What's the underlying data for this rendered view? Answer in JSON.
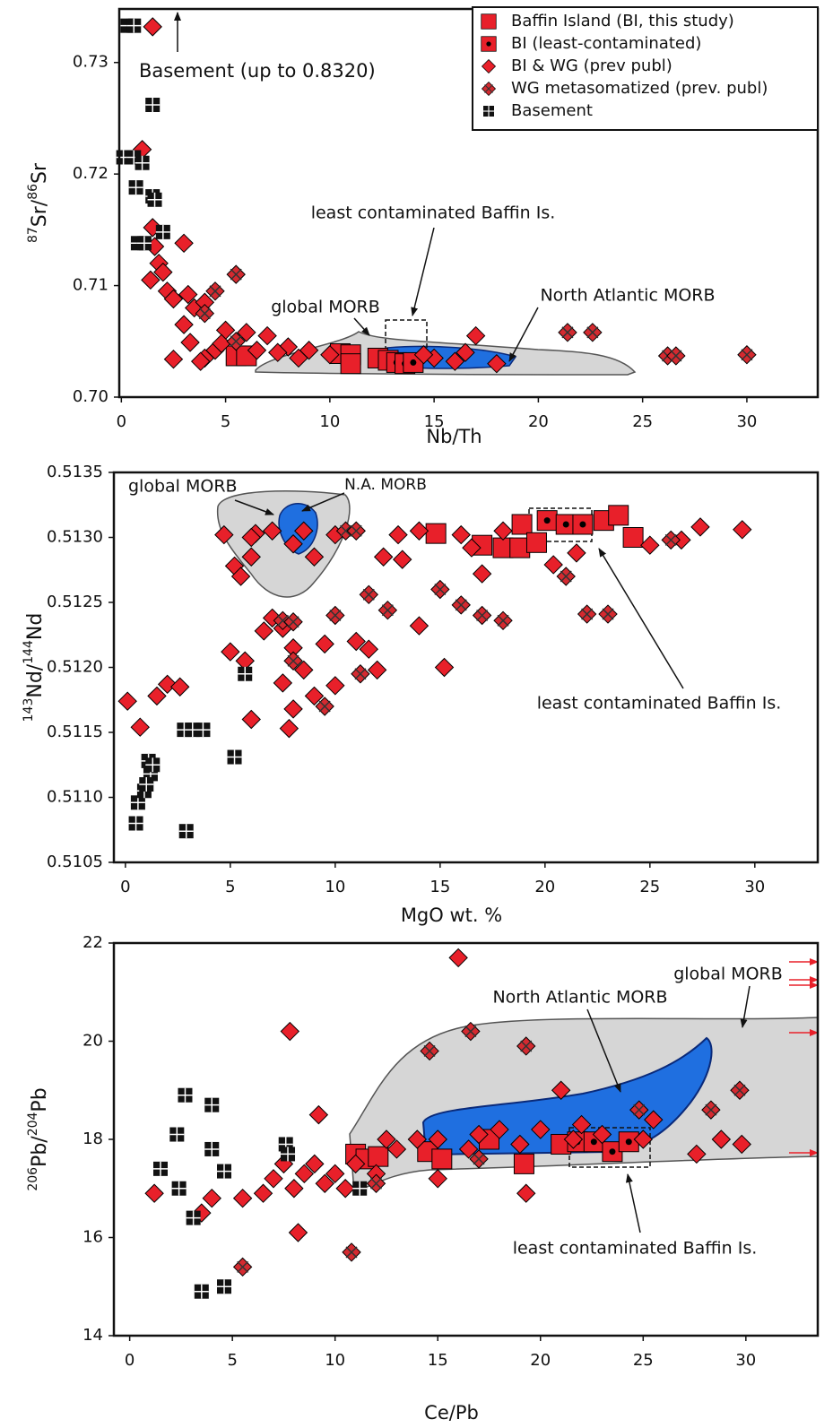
{
  "chart_data": [
    {
      "type": "scatter",
      "xlabel": "Nb/Th",
      "ylabel": [
        "87",
        "Sr/",
        "86",
        "Sr"
      ],
      "xlim": [
        -0.1,
        33.4
      ],
      "ylim": [
        0.7,
        0.7348
      ],
      "xticks": [
        0,
        5,
        10,
        15,
        20,
        25,
        30
      ],
      "yticks": [
        {
          "value": 0.7,
          "label": "0.70"
        },
        0.71,
        0.72,
        0.73
      ],
      "legend": "upper right",
      "annotations": [
        "Basement (up to 0.8320)",
        "least contaminated Baffin Is.",
        "global MORB",
        "North Atlantic MORB"
      ],
      "series": [
        {
          "name": "Baffin Island (BI, this study)",
          "marker": "square",
          "color": "#e8202a",
          "x": [
            5.5,
            6,
            10.5,
            11,
            12.3,
            11,
            12.8
          ],
          "values": [
            0.7037,
            0.7037,
            0.7039,
            0.7038,
            0.7035,
            0.703,
            0.7033
          ]
        },
        {
          "name": "BI (least-contaminated)",
          "marker": "square-dot",
          "color": "#e8202a",
          "x": [
            13.2,
            13.6,
            14
          ],
          "values": [
            0.7031,
            0.703,
            0.7031
          ]
        },
        {
          "name": "BI & WG (prev publ)",
          "marker": "diamond",
          "color": "#e8202a",
          "x": [
            1.5,
            1,
            1.5,
            1.6,
            1.8,
            2,
            1.4,
            2.2,
            2.5,
            3,
            3.2,
            3.5,
            4,
            3,
            3.3,
            2.5,
            4,
            4.5,
            5,
            6,
            7,
            8,
            9,
            10,
            15,
            16,
            17,
            18,
            8.5,
            7.5,
            4.8,
            3.8,
            6.5,
            14.5,
            16.5
          ],
          "values": [
            0.7332,
            0.7222,
            0.7152,
            0.7135,
            0.712,
            0.7112,
            0.7105,
            0.7095,
            0.7088,
            0.7138,
            0.7092,
            0.708,
            0.7085,
            0.7065,
            0.7049,
            0.7034,
            0.7035,
            0.7042,
            0.706,
            0.7058,
            0.7055,
            0.7045,
            0.7042,
            0.7038,
            0.7035,
            0.7032,
            0.7055,
            0.703,
            0.7035,
            0.704,
            0.7048,
            0.7032,
            0.7042,
            0.7038,
            0.704
          ]
        },
        {
          "name": "WG metasomatized (prev. publ)",
          "marker": "diamond-x",
          "color": "#d42a30",
          "x": [
            5.5,
            4.5,
            21.4,
            22.6,
            26.2,
            26.6,
            30,
            4,
            5.5
          ],
          "values": [
            0.711,
            0.7095,
            0.7058,
            0.7058,
            0.7037,
            0.7037,
            0.7038,
            0.7075,
            0.705
          ]
        },
        {
          "name": "Basement",
          "marker": "basement",
          "color": "#111111",
          "x": [
            0.3,
            0.6,
            1.5,
            0.1,
            0.6,
            1,
            0.7,
            1.5,
            1.6,
            2,
            0.8,
            1.1
          ],
          "values": [
            0.7333,
            0.7333,
            0.7262,
            0.7215,
            0.7215,
            0.721,
            0.7188,
            0.718,
            0.7177,
            0.7148,
            0.7138,
            0.7138
          ]
        }
      ]
    },
    {
      "type": "scatter",
      "xlabel": "MgO wt. %",
      "ylabel": [
        "143",
        "Nd/",
        "144",
        "Nd"
      ],
      "xlim": [
        -0.55,
        33
      ],
      "ylim": [
        0.5105,
        0.5135
      ],
      "xticks": [
        0,
        5,
        10,
        15,
        20,
        25,
        30
      ],
      "yticks": [
        0.5105,
        {
          "value": 0.511,
          "label": "0.5110"
        },
        0.5115,
        {
          "value": 0.512,
          "label": "0.5120"
        },
        0.5125,
        {
          "value": 0.513,
          "label": "0.5130"
        },
        0.5135
      ],
      "annotations": [
        "global MORB",
        "N.A. MORB",
        "least contaminated Baffin Is."
      ],
      "series": [
        {
          "marker": "square",
          "color": "#e8202a",
          "x": [
            14.8,
            17,
            18,
            18.9,
            18.8,
            19.6,
            22.8,
            23.5,
            24.2
          ],
          "values": [
            0.51303,
            0.51294,
            0.51292,
            0.5131,
            0.51292,
            0.51296,
            0.51313,
            0.51317,
            0.513
          ]
        },
        {
          "marker": "square-dot",
          "color": "#e8202a",
          "x": [
            20.1,
            21,
            21.8
          ],
          "values": [
            0.51313,
            0.5131,
            0.5131
          ]
        },
        {
          "marker": "diamond",
          "color": "#e8202a",
          "x": [
            0.1,
            0.7,
            1.5,
            2,
            2.6,
            4.7,
            5.2,
            5.5,
            6,
            6.2,
            5,
            5.7,
            6,
            6.6,
            7,
            7.5,
            8,
            7.5,
            8,
            7.8,
            8.5,
            9,
            9.5,
            10,
            11,
            11.6,
            12,
            12.3,
            13.2,
            14,
            15.2,
            16,
            16.5,
            17,
            18,
            20.4,
            21.5,
            25,
            26.5,
            27.4,
            29.4,
            8,
            9,
            10,
            13,
            14,
            6,
            7,
            8.5
          ],
          "values": [
            0.51174,
            0.51154,
            0.51178,
            0.51187,
            0.51185,
            0.51302,
            0.51278,
            0.5127,
            0.51285,
            0.51303,
            0.51212,
            0.51205,
            0.5116,
            0.51228,
            0.51238,
            0.5123,
            0.51215,
            0.51188,
            0.51168,
            0.51153,
            0.51198,
            0.51178,
            0.51218,
            0.51186,
            0.5122,
            0.51214,
            0.51198,
            0.51285,
            0.51283,
            0.51232,
            0.512,
            0.51302,
            0.51292,
            0.51272,
            0.51305,
            0.51279,
            0.51288,
            0.51294,
            0.51298,
            0.51308,
            0.51306,
            0.51295,
            0.51285,
            0.51302,
            0.51302,
            0.51305,
            0.513,
            0.51305,
            0.51305
          ]
        },
        {
          "marker": "diamond-x",
          "color": "#d42a30",
          "x": [
            7.5,
            8,
            10,
            11.6,
            12.5,
            15,
            16,
            17,
            18,
            21,
            22,
            23,
            26,
            10.5,
            11,
            8,
            9.5,
            11.2
          ],
          "values": [
            0.51236,
            0.51235,
            0.5124,
            0.51256,
            0.51244,
            0.5126,
            0.51248,
            0.5124,
            0.51236,
            0.5127,
            0.51241,
            0.51241,
            0.51298,
            0.51305,
            0.51305,
            0.51205,
            0.5117,
            0.51195
          ]
        },
        {
          "marker": "basement",
          "color": "#111111",
          "x": [
            5.7,
            2.8,
            3.2,
            3.7,
            5.2,
            2.9,
            0.5,
            0.6,
            0.9,
            1.1,
            1.2,
            1,
            1.3
          ],
          "values": [
            0.51195,
            0.51152,
            0.51152,
            0.51152,
            0.51131,
            0.51074,
            0.5108,
            0.51096,
            0.51105,
            0.51128,
            0.51118,
            0.5111,
            0.51125
          ]
        }
      ]
    },
    {
      "type": "scatter",
      "xlabel": "Ce/Pb",
      "ylabel": [
        "206",
        "Pb/",
        "204",
        "Pb"
      ],
      "xlim": [
        -0.77,
        33.5
      ],
      "ylim": [
        14,
        22
      ],
      "xticks": [
        0,
        5,
        10,
        15,
        20,
        25,
        30
      ],
      "yticks": [
        14,
        16,
        18,
        20,
        22
      ],
      "annotations": [
        "North Atlantic MORB",
        "global MORB",
        "least contaminated Baffin Is."
      ],
      "series": [
        {
          "marker": "square",
          "color": "#e8202a",
          "x": [
            11,
            11.5,
            12.1,
            14.5,
            15.2,
            17.5,
            19.2,
            21
          ],
          "values": [
            17.7,
            17.6,
            17.65,
            17.75,
            17.6,
            18,
            17.5,
            17.9
          ]
        },
        {
          "marker": "square-dot",
          "color": "#e8202a",
          "x": [
            21.8,
            22.6,
            23.5,
            24.3
          ],
          "values": [
            17.95,
            17.95,
            17.75,
            17.95
          ]
        },
        {
          "marker": "diamond",
          "color": "#e8202a",
          "x": [
            1.2,
            3.5,
            4,
            5.5,
            6.5,
            7,
            7.5,
            7.8,
            8,
            8.2,
            8.5,
            9,
            9.2,
            9.5,
            10,
            10.5,
            11,
            12,
            12.5,
            13,
            14,
            15,
            16,
            16.5,
            17,
            18,
            19,
            19.3,
            20,
            21,
            21.6,
            22,
            23,
            25,
            25.5,
            27.6,
            28.8,
            29.8,
            15
          ],
          "values": [
            16.9,
            16.5,
            16.8,
            16.8,
            16.9,
            17.2,
            17.5,
            20.2,
            17,
            16.1,
            17.3,
            17.5,
            18.5,
            17.1,
            17.3,
            17,
            17.5,
            17.3,
            18,
            17.8,
            18,
            17.2,
            21.7,
            17.8,
            18.1,
            18.2,
            17.9,
            16.9,
            18.2,
            19,
            18,
            18.3,
            18.1,
            18,
            18.4,
            17.7,
            18,
            17.9,
            18
          ]
        },
        {
          "marker": "diamond-x",
          "color": "#d42a30",
          "x": [
            5.5,
            10.8,
            14.6,
            16.6,
            19.3,
            24.8,
            28.3,
            29.7,
            12,
            17
          ],
          "values": [
            15.4,
            15.7,
            19.8,
            20.2,
            19.9,
            18.6,
            18.6,
            19,
            17.1,
            17.6
          ]
        },
        {
          "marker": "basement",
          "color": "#111111",
          "x": [
            1.5,
            2.3,
            2.7,
            4,
            4,
            4.6,
            2.4,
            3.1,
            3.5,
            4.6,
            7.6,
            7.7,
            11.2
          ],
          "values": [
            17.4,
            18.1,
            18.9,
            18.7,
            17.8,
            17.35,
            17,
            16.4,
            14.9,
            15,
            17.9,
            17.7,
            17
          ]
        }
      ]
    }
  ]
}
